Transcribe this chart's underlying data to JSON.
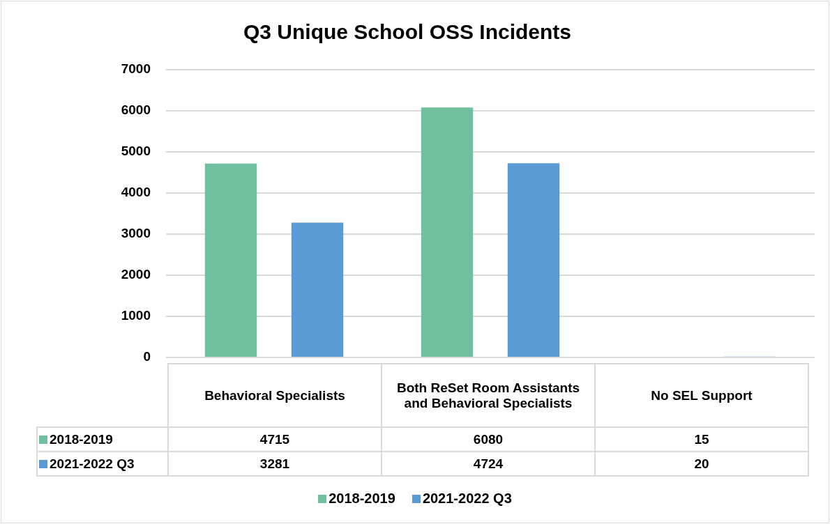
{
  "chart_data": {
    "type": "bar",
    "title": "Q3 Unique School OSS Incidents",
    "categories": [
      "Behavioral Specialists",
      "Both ReSet Room Assistants and Behavioral Specialists",
      "No SEL Support"
    ],
    "series": [
      {
        "name": "2018-2019",
        "color": "#70bf9f",
        "values": [
          4715,
          6080,
          15
        ]
      },
      {
        "name": "2021-2022 Q3",
        "color": "#5b9bd5",
        "values": [
          3281,
          4724,
          20
        ]
      }
    ],
    "ylim": [
      0,
      7000
    ],
    "yticks": [
      0,
      1000,
      2000,
      3000,
      4000,
      5000,
      6000,
      7000
    ],
    "grid": "y",
    "legend": "bottom",
    "data_labels": true
  }
}
